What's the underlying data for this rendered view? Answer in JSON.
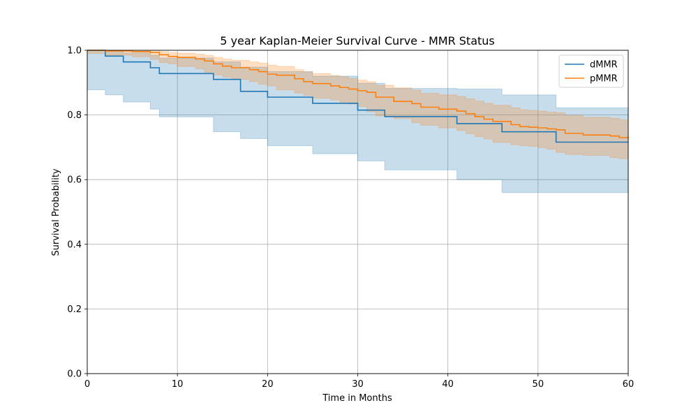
{
  "chart_data": {
    "type": "line",
    "title": "5 year Kaplan-Meier Survival Curve - MMR Status",
    "xlabel": "Time in Months",
    "ylabel": "Survival Probability",
    "xlim": [
      0,
      60
    ],
    "ylim": [
      0.0,
      1.0
    ],
    "xticks": [
      "0",
      "10",
      "20",
      "30",
      "40",
      "50",
      "60"
    ],
    "yticks": [
      "0.0",
      "0.2",
      "0.4",
      "0.6",
      "0.8",
      "1.0"
    ],
    "grid": true,
    "legend_position": "top-right",
    "step": true,
    "series": [
      {
        "name": "dMMR",
        "color": "#1f77b4",
        "x": [
          0,
          2,
          4,
          7,
          8,
          14,
          17,
          20,
          25,
          30,
          33,
          41,
          46,
          52,
          60
        ],
        "y": [
          1.0,
          0.982,
          0.964,
          0.946,
          0.928,
          0.91,
          0.873,
          0.855,
          0.836,
          0.815,
          0.795,
          0.773,
          0.748,
          0.716,
          0.716
        ],
        "ci_lower": [
          1.0,
          0.878,
          0.862,
          0.84,
          0.818,
          0.794,
          0.748,
          0.727,
          0.705,
          0.68,
          0.658,
          0.63,
          0.6,
          0.56,
          0.56
        ],
        "ci_upper": [
          1.0,
          0.998,
          0.992,
          0.985,
          0.976,
          0.964,
          0.948,
          0.934,
          0.92,
          0.898,
          0.882,
          0.88,
          0.862,
          0.822,
          0.822
        ]
      },
      {
        "name": "pMMR",
        "color": "#ff7f0e",
        "x": [
          0,
          2,
          5,
          7,
          8,
          9,
          10,
          12,
          13,
          14,
          15,
          16,
          18,
          19,
          20,
          21,
          23,
          24,
          25,
          27,
          28,
          29,
          30,
          31,
          32,
          34,
          36,
          37,
          39,
          41,
          42,
          43,
          44,
          45,
          47,
          48,
          49,
          50,
          51,
          52,
          53,
          55,
          58,
          59,
          60
        ],
        "y": [
          1.0,
          0.998,
          0.996,
          0.993,
          0.986,
          0.981,
          0.978,
          0.973,
          0.967,
          0.958,
          0.951,
          0.946,
          0.94,
          0.934,
          0.926,
          0.923,
          0.912,
          0.903,
          0.897,
          0.89,
          0.885,
          0.88,
          0.875,
          0.87,
          0.855,
          0.842,
          0.835,
          0.824,
          0.818,
          0.812,
          0.804,
          0.795,
          0.787,
          0.78,
          0.77,
          0.764,
          0.762,
          0.76,
          0.757,
          0.754,
          0.743,
          0.738,
          0.735,
          0.73,
          0.727
        ],
        "ci_lower": [
          1.0,
          0.99,
          0.985,
          0.98,
          0.972,
          0.962,
          0.958,
          0.95,
          0.943,
          0.932,
          0.924,
          0.917,
          0.91,
          0.903,
          0.895,
          0.89,
          0.878,
          0.868,
          0.861,
          0.852,
          0.846,
          0.84,
          0.834,
          0.826,
          0.81,
          0.797,
          0.789,
          0.776,
          0.768,
          0.76,
          0.752,
          0.742,
          0.733,
          0.726,
          0.715,
          0.708,
          0.705,
          0.703,
          0.699,
          0.694,
          0.684,
          0.678,
          0.675,
          0.668,
          0.665
        ],
        "ci_upper": [
          1.0,
          1.0,
          1.0,
          1.0,
          0.996,
          0.993,
          0.991,
          0.988,
          0.984,
          0.978,
          0.973,
          0.969,
          0.964,
          0.96,
          0.954,
          0.95,
          0.94,
          0.933,
          0.928,
          0.922,
          0.918,
          0.913,
          0.908,
          0.903,
          0.892,
          0.884,
          0.877,
          0.867,
          0.862,
          0.857,
          0.85,
          0.843,
          0.836,
          0.83,
          0.822,
          0.816,
          0.814,
          0.812,
          0.809,
          0.807,
          0.798,
          0.793,
          0.79,
          0.785,
          0.782
        ]
      }
    ]
  }
}
